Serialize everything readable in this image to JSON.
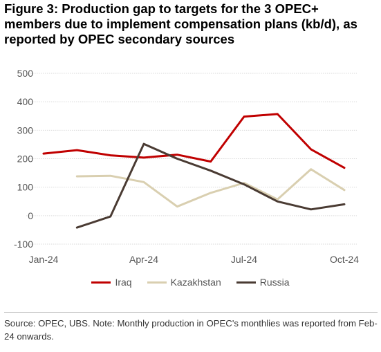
{
  "title": "Figure 3: Production gap to targets for the 3 OPEC+ members due to implement compensation plans (kb/d), as reported by OPEC secondary sources",
  "source_note": "Source: OPEC, UBS. Note: Monthly production in OPEC's monthlies was reported from Feb-24 onwards.",
  "colors": {
    "Iraq": "#c00000",
    "Kazakhstan": "#d9cfb0",
    "Russia": "#4a3b33",
    "grid": "#d9d9d9",
    "axis": "#555555"
  },
  "chart_data": {
    "type": "line",
    "title": "Figure 3: Production gap to targets for the 3 OPEC+ members due to implement compensation plans (kb/d), as reported by OPEC secondary sources",
    "xlabel": "",
    "ylabel": "",
    "x": [
      "Jan-24",
      "Feb-24",
      "Mar-24",
      "Apr-24",
      "May-24",
      "Jun-24",
      "Jul-24",
      "Aug-24",
      "Sep-24",
      "Oct-24"
    ],
    "x_tick_labels": [
      "Jan-24",
      "Apr-24",
      "Jul-24",
      "Oct-24"
    ],
    "ylim": [
      -100,
      500
    ],
    "y_ticks": [
      -100,
      0,
      100,
      200,
      300,
      400,
      500
    ],
    "grid": "horizontal",
    "legend": "bottom",
    "series": [
      {
        "name": "Iraq",
        "values": [
          218,
          230,
          212,
          204,
          214,
          190,
          348,
          357,
          233,
          168
        ]
      },
      {
        "name": "Kazakhstan",
        "values": [
          null,
          138,
          140,
          118,
          32,
          80,
          115,
          57,
          163,
          90
        ]
      },
      {
        "name": "Russia",
        "values": [
          null,
          -42,
          -3,
          252,
          200,
          158,
          110,
          50,
          22,
          40
        ]
      }
    ]
  }
}
